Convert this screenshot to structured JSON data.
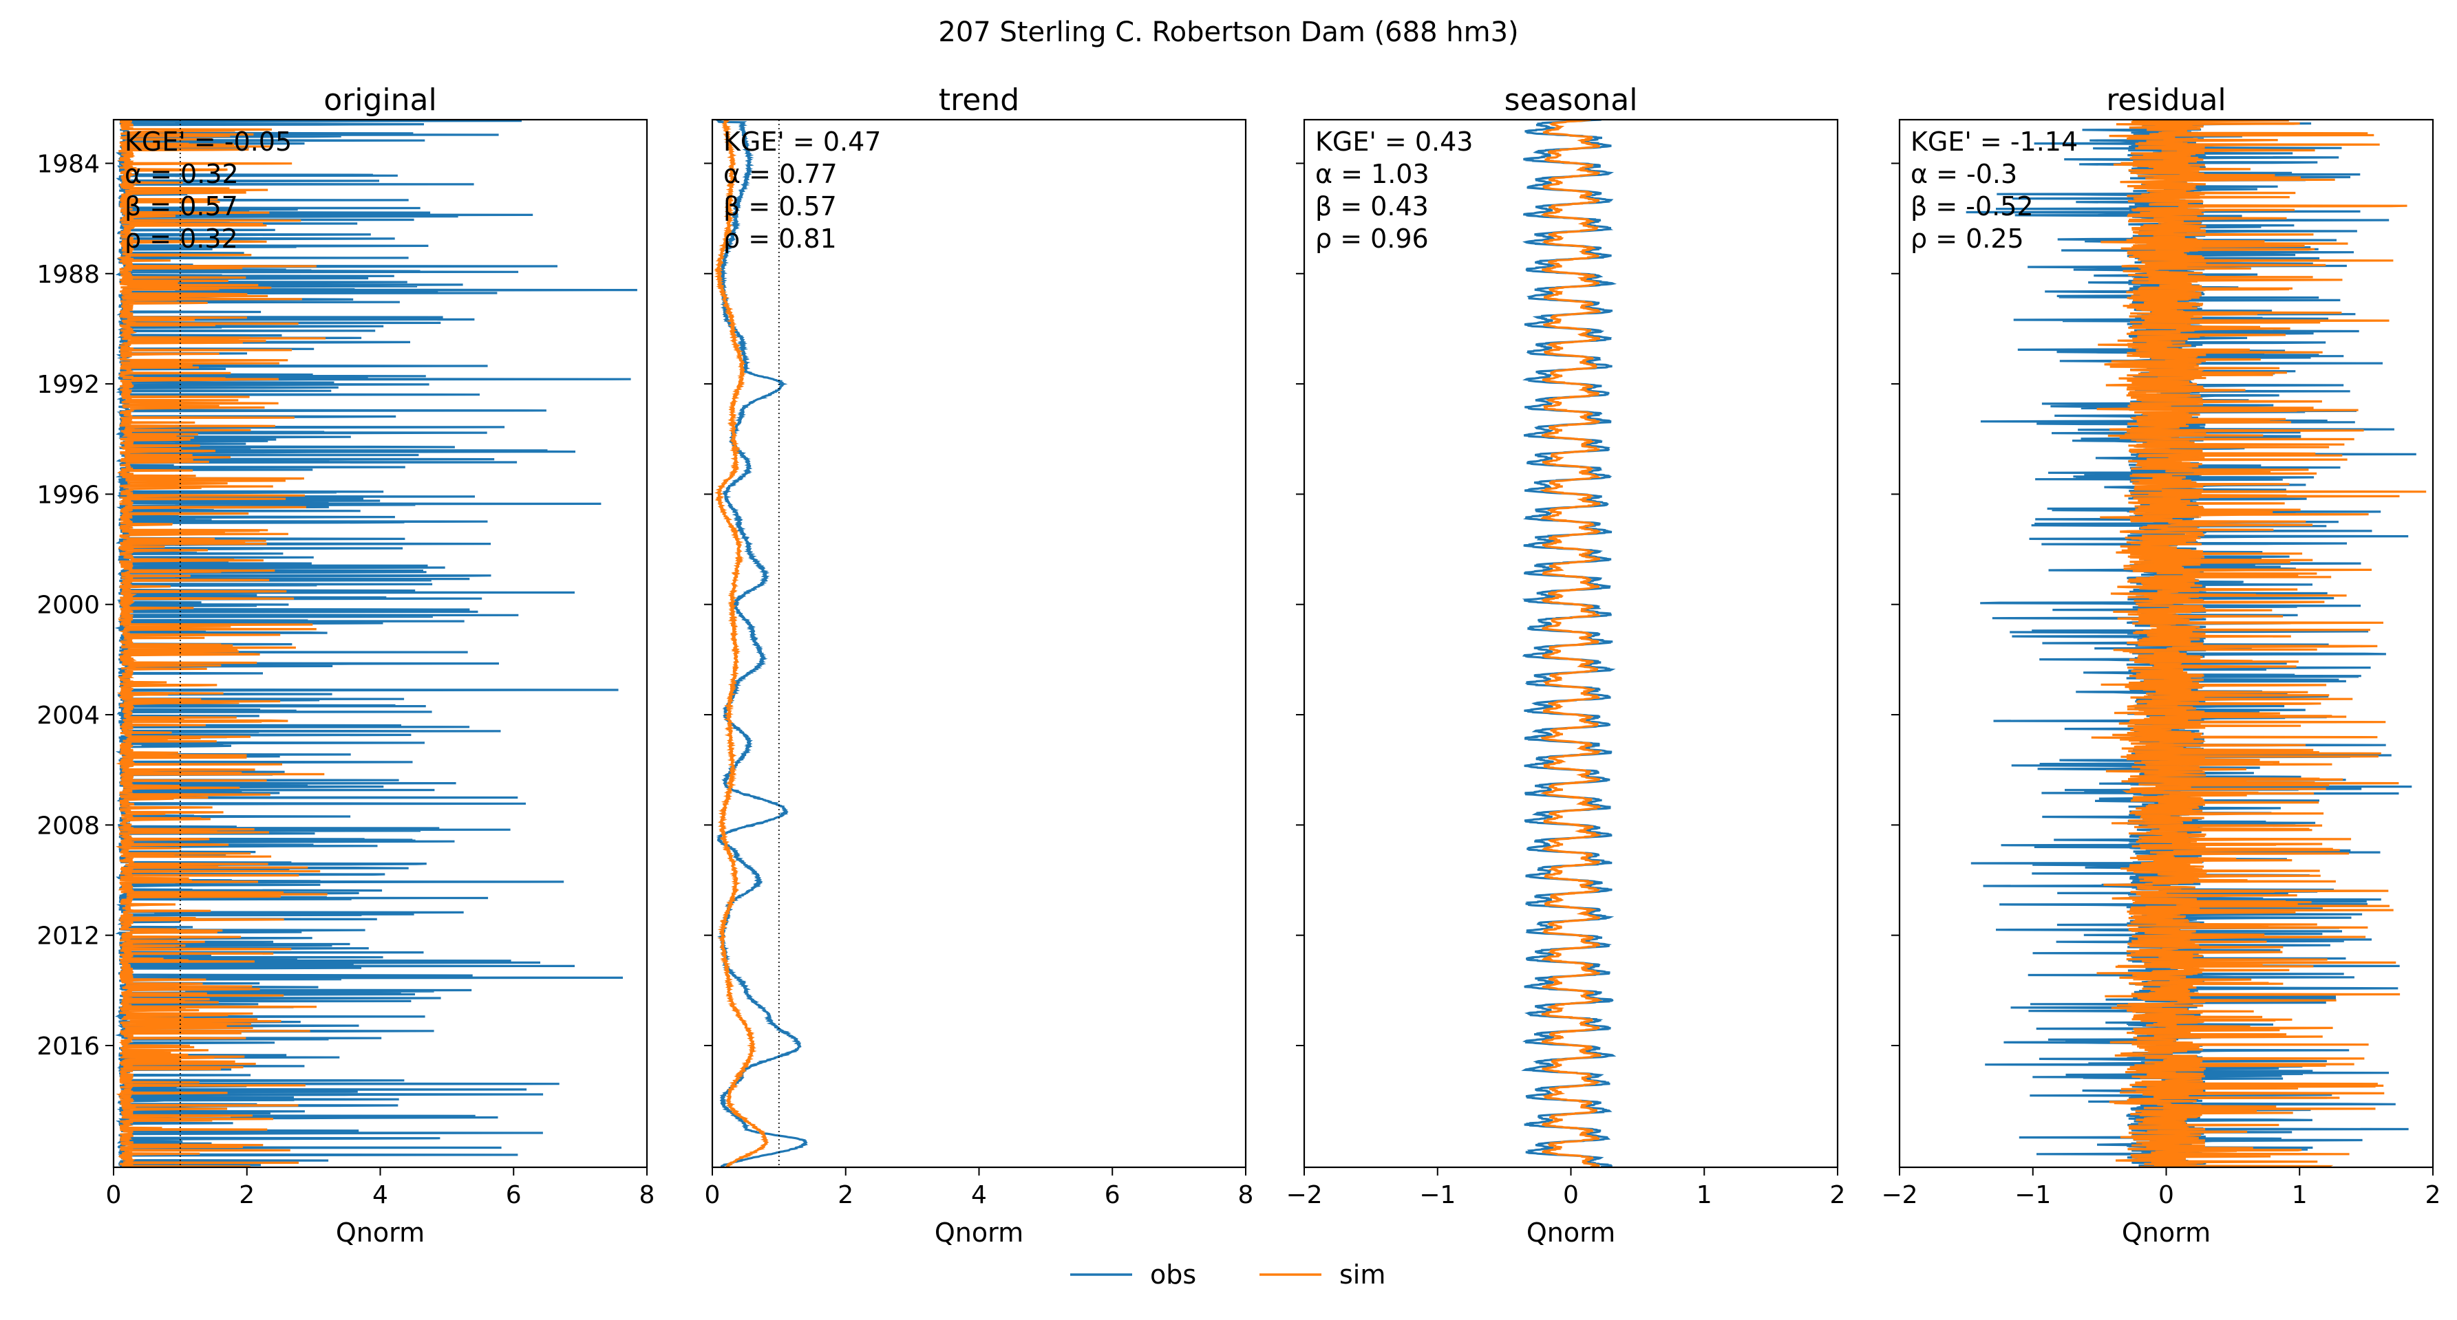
{
  "chart_data": {
    "type": "line",
    "title": "207  Sterling C. Robertson Dam (688 hm3)",
    "xlabel": "Qnorm",
    "orientation": "horizontal-value / vertical-time",
    "y_axis": {
      "kind": "date",
      "range": [
        "1982-06",
        "2020-06"
      ],
      "inverted": true,
      "tick_labels": [
        "1984",
        "1988",
        "1992",
        "1996",
        "2000",
        "2004",
        "2008",
        "2012",
        "2016"
      ]
    },
    "legend": {
      "placement": "bottom-center",
      "entries": [
        "obs",
        "sim"
      ]
    },
    "colors": {
      "obs": "#1f77b4",
      "sim": "#ff7f0e",
      "reference_line": "#000000"
    },
    "panels": [
      {
        "title": "original",
        "xlim": [
          0,
          8
        ],
        "xticks": [
          "0",
          "2",
          "4",
          "6",
          "8"
        ],
        "reference_lines": [
          1
        ],
        "stats": {
          "kge": "KGE' = -0.05",
          "alpha": "α = 0.32",
          "beta": "β = 0.57",
          "rho": "ρ = 0.32"
        },
        "series": [
          {
            "name": "obs",
            "pattern": "spiky",
            "base": 0.25,
            "spike_max": 8.0,
            "spike_prob": 0.12
          },
          {
            "name": "sim",
            "pattern": "spiky",
            "base": 0.3,
            "spike_max": 3.3,
            "spike_prob": 0.1
          }
        ]
      },
      {
        "title": "trend",
        "xlim": [
          0,
          8
        ],
        "xticks": [
          "0",
          "2",
          "4",
          "6",
          "8"
        ],
        "reference_lines": [
          0,
          1
        ],
        "stats": {
          "kge": "KGE' = 0.47",
          "alpha": "α = 0.77",
          "beta": "β = 0.57",
          "rho": "ρ = 0.81"
        },
        "series": [
          {
            "name": "obs",
            "pattern": "trend",
            "knots_years": [
              1982.5,
              1984,
              1986,
              1988,
              1989.5,
              1990.5,
              1991.5,
              1992,
              1993,
              1994,
              1995,
              1996,
              1997,
              1998,
              1999,
              2000,
              2001,
              2002,
              2003,
              2004,
              2005,
              2006.5,
              2007.5,
              2008.5,
              2009,
              2010,
              2011,
              2012,
              2013,
              2014,
              2015,
              2016,
              2017,
              2018,
              2019,
              2019.5,
              2020.5
            ],
            "values": [
              0.45,
              0.55,
              0.35,
              0.15,
              0.2,
              0.45,
              0.5,
              1.05,
              0.45,
              0.3,
              0.55,
              0.2,
              0.4,
              0.55,
              0.8,
              0.35,
              0.6,
              0.75,
              0.35,
              0.2,
              0.55,
              0.2,
              1.1,
              0.1,
              0.35,
              0.7,
              0.25,
              0.15,
              0.2,
              0.5,
              0.85,
              1.3,
              0.45,
              0.15,
              0.5,
              1.4,
              0.1
            ]
          },
          {
            "name": "sim",
            "pattern": "trend",
            "knots_years": [
              1982.5,
              1984,
              1986,
              1988,
              1990,
              1991.5,
              1993,
              1995,
              1996,
              1998,
              2000,
              2002,
              2004,
              2006,
              2008,
              2010,
              2012,
              2014,
              2016,
              2018,
              2019.5,
              2020.5
            ],
            "values": [
              0.2,
              0.3,
              0.25,
              0.1,
              0.3,
              0.45,
              0.3,
              0.35,
              0.1,
              0.4,
              0.3,
              0.35,
              0.25,
              0.3,
              0.15,
              0.35,
              0.15,
              0.25,
              0.6,
              0.25,
              0.8,
              0.2
            ]
          }
        ]
      },
      {
        "title": "seasonal",
        "xlim": [
          -2,
          2
        ],
        "xticks": [
          "−2",
          "−1",
          "0",
          "1",
          "2"
        ],
        "reference_lines": [],
        "stats": {
          "kge": "KGE' = 0.43",
          "alpha": "α = 1.03",
          "beta": "β = 0.43",
          "rho": "ρ = 0.96"
        },
        "series": [
          {
            "name": "obs",
            "pattern": "seasonal",
            "amplitude": 0.35,
            "offset": -0.02
          },
          {
            "name": "sim",
            "pattern": "seasonal",
            "amplitude": 0.22,
            "offset": 0.0
          }
        ]
      },
      {
        "title": "residual",
        "xlim": [
          -2,
          2
        ],
        "xticks": [
          "−2",
          "−1",
          "0",
          "1",
          "2"
        ],
        "reference_lines": [],
        "stats": {
          "kge": "KGE' = -1.14",
          "alpha": "α = -0.3",
          "beta": "β = -0.52",
          "rho": "ρ = 0.25"
        },
        "series": [
          {
            "name": "obs",
            "pattern": "residual",
            "left_max": -1.6,
            "right_max": 2.0
          },
          {
            "name": "sim",
            "pattern": "residual",
            "left_max": -0.6,
            "right_max": 2.0
          }
        ]
      }
    ]
  }
}
